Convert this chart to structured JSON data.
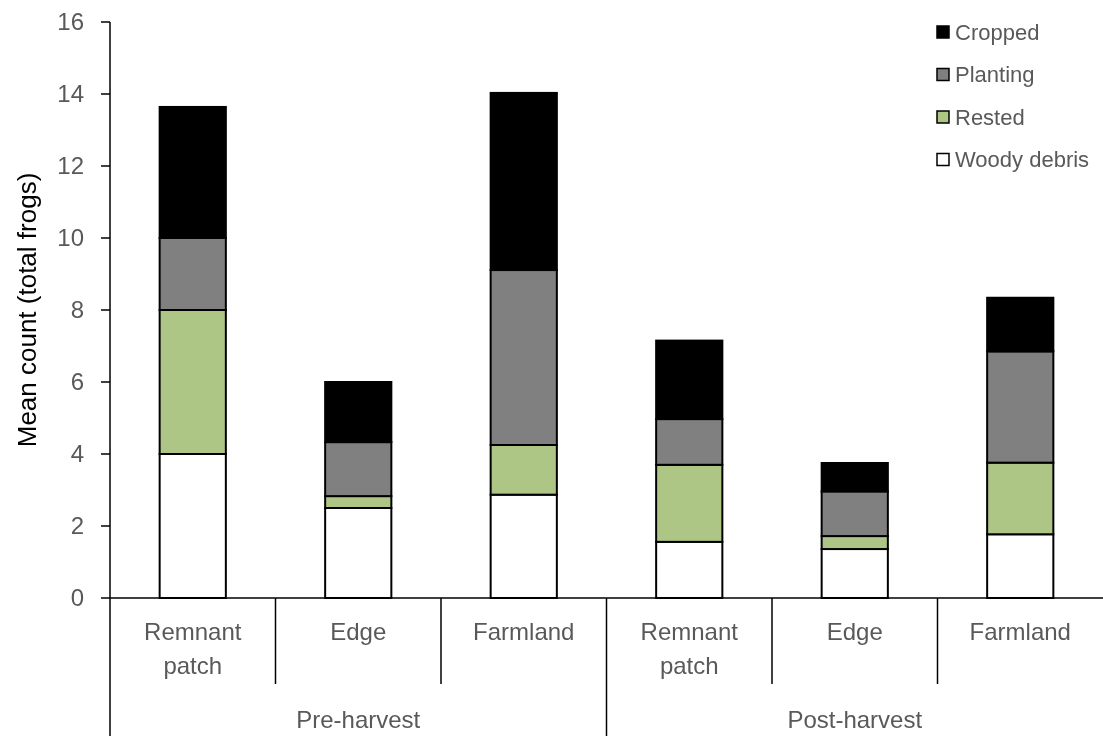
{
  "chart_data": {
    "type": "bar",
    "stacked": true,
    "ylabel": "Mean count (total frogs)",
    "categories": [
      "Remnant patch",
      "Edge",
      "Farmland",
      "Remnant patch",
      "Edge",
      "Farmland"
    ],
    "annotations": [
      "Pre-harvest",
      "Post-harvest"
    ],
    "series": [
      {
        "name": "Woody debris",
        "color": "#ffffff",
        "values": [
          4.0,
          2.5,
          2.87,
          1.56,
          1.36,
          1.77
        ]
      },
      {
        "name": "Rested",
        "color": "#adc686",
        "values": [
          4.0,
          0.33,
          1.38,
          2.14,
          0.36,
          1.99
        ]
      },
      {
        "name": "Planting",
        "color": "#808080",
        "values": [
          2.0,
          1.5,
          4.86,
          1.27,
          1.24,
          3.09
        ]
      },
      {
        "name": "Cropped",
        "color": "#000000",
        "values": [
          3.64,
          1.67,
          4.92,
          2.18,
          0.79,
          1.49
        ]
      }
    ],
    "ylim": [
      0,
      16
    ],
    "yticks": [
      0,
      2,
      4,
      6,
      8,
      10,
      12,
      14,
      16
    ],
    "legend": "top right"
  }
}
